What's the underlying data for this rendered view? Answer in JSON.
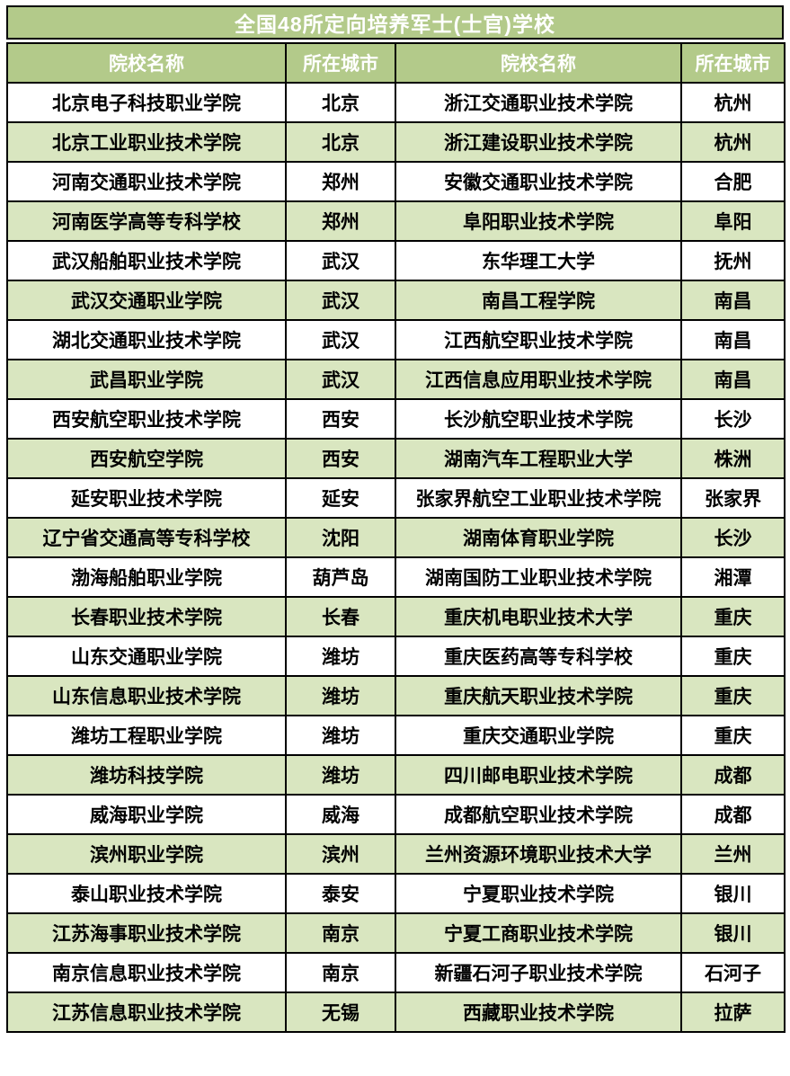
{
  "title": "全国48所定向培养军士(士官)学校",
  "columns": [
    "院校名称",
    "所在城市",
    "院校名称",
    "所在城市"
  ],
  "colors": {
    "header_green": "#b3ca8a",
    "row_light_green": "#d9e6c0",
    "row_white": "#ffffff",
    "border": "#000000",
    "header_text": "#ffffff",
    "cell_text": "#000000"
  },
  "rows": [
    [
      "北京电子科技职业学院",
      "北京",
      "浙江交通职业技术学院",
      "杭州"
    ],
    [
      "北京工业职业技术学院",
      "北京",
      "浙江建设职业技术学院",
      "杭州"
    ],
    [
      "河南交通职业技术学院",
      "郑州",
      "安徽交通职业技术学院",
      "合肥"
    ],
    [
      "河南医学高等专科学校",
      "郑州",
      "阜阳职业技术学院",
      "阜阳"
    ],
    [
      "武汉船舶职业技术学院",
      "武汉",
      "东华理工大学",
      "抚州"
    ],
    [
      "武汉交通职业学院",
      "武汉",
      "南昌工程学院",
      "南昌"
    ],
    [
      "湖北交通职业技术学院",
      "武汉",
      "江西航空职业技术学院",
      "南昌"
    ],
    [
      "武昌职业学院",
      "武汉",
      "江西信息应用职业技术学院",
      "南昌"
    ],
    [
      "西安航空职业技术学院",
      "西安",
      "长沙航空职业技术学院",
      "长沙"
    ],
    [
      "西安航空学院",
      "西安",
      "湖南汽车工程职业大学",
      "株洲"
    ],
    [
      "延安职业技术学院",
      "延安",
      "张家界航空工业职业技术学院",
      "张家界"
    ],
    [
      "辽宁省交通高等专科学校",
      "沈阳",
      "湖南体育职业学院",
      "长沙"
    ],
    [
      "渤海船舶职业学院",
      "葫芦岛",
      "湖南国防工业职业技术学院",
      "湘潭"
    ],
    [
      "长春职业技术学院",
      "长春",
      "重庆机电职业技术大学",
      "重庆"
    ],
    [
      "山东交通职业学院",
      "潍坊",
      "重庆医药高等专科学校",
      "重庆"
    ],
    [
      "山东信息职业技术学院",
      "潍坊",
      "重庆航天职业技术学院",
      "重庆"
    ],
    [
      "潍坊工程职业学院",
      "潍坊",
      "重庆交通职业学院",
      "重庆"
    ],
    [
      "潍坊科技学院",
      "潍坊",
      "四川邮电职业技术学院",
      "成都"
    ],
    [
      "威海职业学院",
      "威海",
      "成都航空职业技术学院",
      "成都"
    ],
    [
      "滨州职业学院",
      "滨州",
      "兰州资源环境职业技术大学",
      "兰州"
    ],
    [
      "泰山职业技术学院",
      "泰安",
      "宁夏职业技术学院",
      "银川"
    ],
    [
      "江苏海事职业技术学院",
      "南京",
      "宁夏工商职业技术学院",
      "银川"
    ],
    [
      "南京信息职业技术学院",
      "南京",
      "新疆石河子职业技术学院",
      "石河子"
    ],
    [
      "江苏信息职业技术学院",
      "无锡",
      "西藏职业技术学院",
      "拉萨"
    ]
  ]
}
